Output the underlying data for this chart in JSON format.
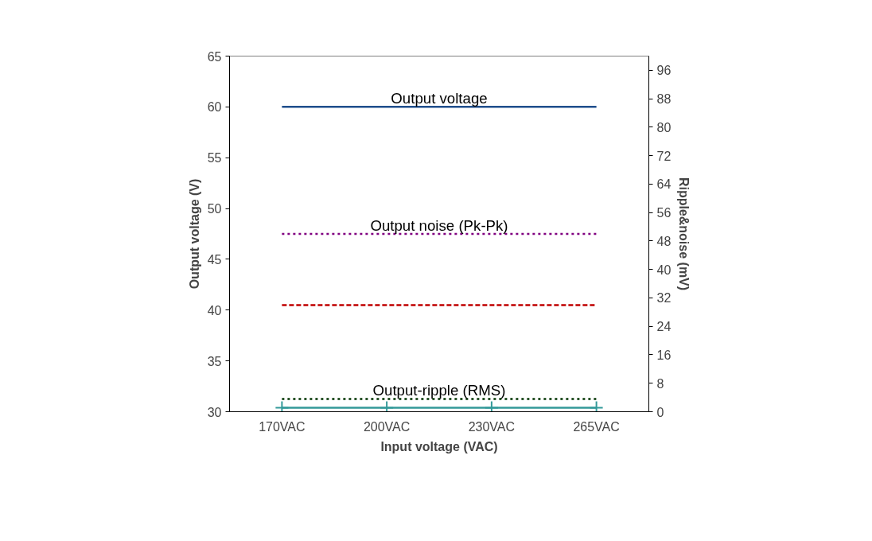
{
  "chart_data": {
    "type": "line",
    "xlabel": "Input voltage (VAC)",
    "ylabel": "Output voltage (V)",
    "y2label": "Ripple&noise (mV)",
    "categories": [
      "170VAC",
      "200VAC",
      "230VAC",
      "265VAC"
    ],
    "ylim": [
      30,
      65
    ],
    "yticks": [
      30,
      35,
      40,
      45,
      50,
      55,
      60,
      65
    ],
    "y2lim": [
      0,
      100
    ],
    "y2ticks": [
      0,
      8,
      16,
      24,
      32,
      40,
      48,
      56,
      64,
      72,
      80,
      88,
      96
    ],
    "grid": false,
    "series": [
      {
        "name": "Output voltage",
        "color": "#1f4e8c",
        "values": [
          60,
          60,
          60,
          60
        ],
        "line_style": "solid"
      },
      {
        "name": "Output noise (Pk-Pk)",
        "color": "#800080",
        "values": [
          50,
          50,
          50,
          50
        ],
        "axis": "y2",
        "line_style": "dotted"
      },
      {
        "color": "#c00000",
        "values": [
          30,
          30,
          30,
          30
        ],
        "axis": "y2",
        "line_style": "dashed"
      },
      {
        "name": "Output-ripple (RMS)",
        "color": "#003300",
        "values": [
          3.6,
          3.6,
          3.6,
          3.6
        ],
        "axis": "y2",
        "line_style": "dotted"
      },
      {
        "color": "#339999",
        "values": [
          1.1,
          1.1,
          1.1,
          1.1
        ],
        "axis": "y2",
        "line_style": "solid",
        "marker": "cross"
      }
    ]
  }
}
